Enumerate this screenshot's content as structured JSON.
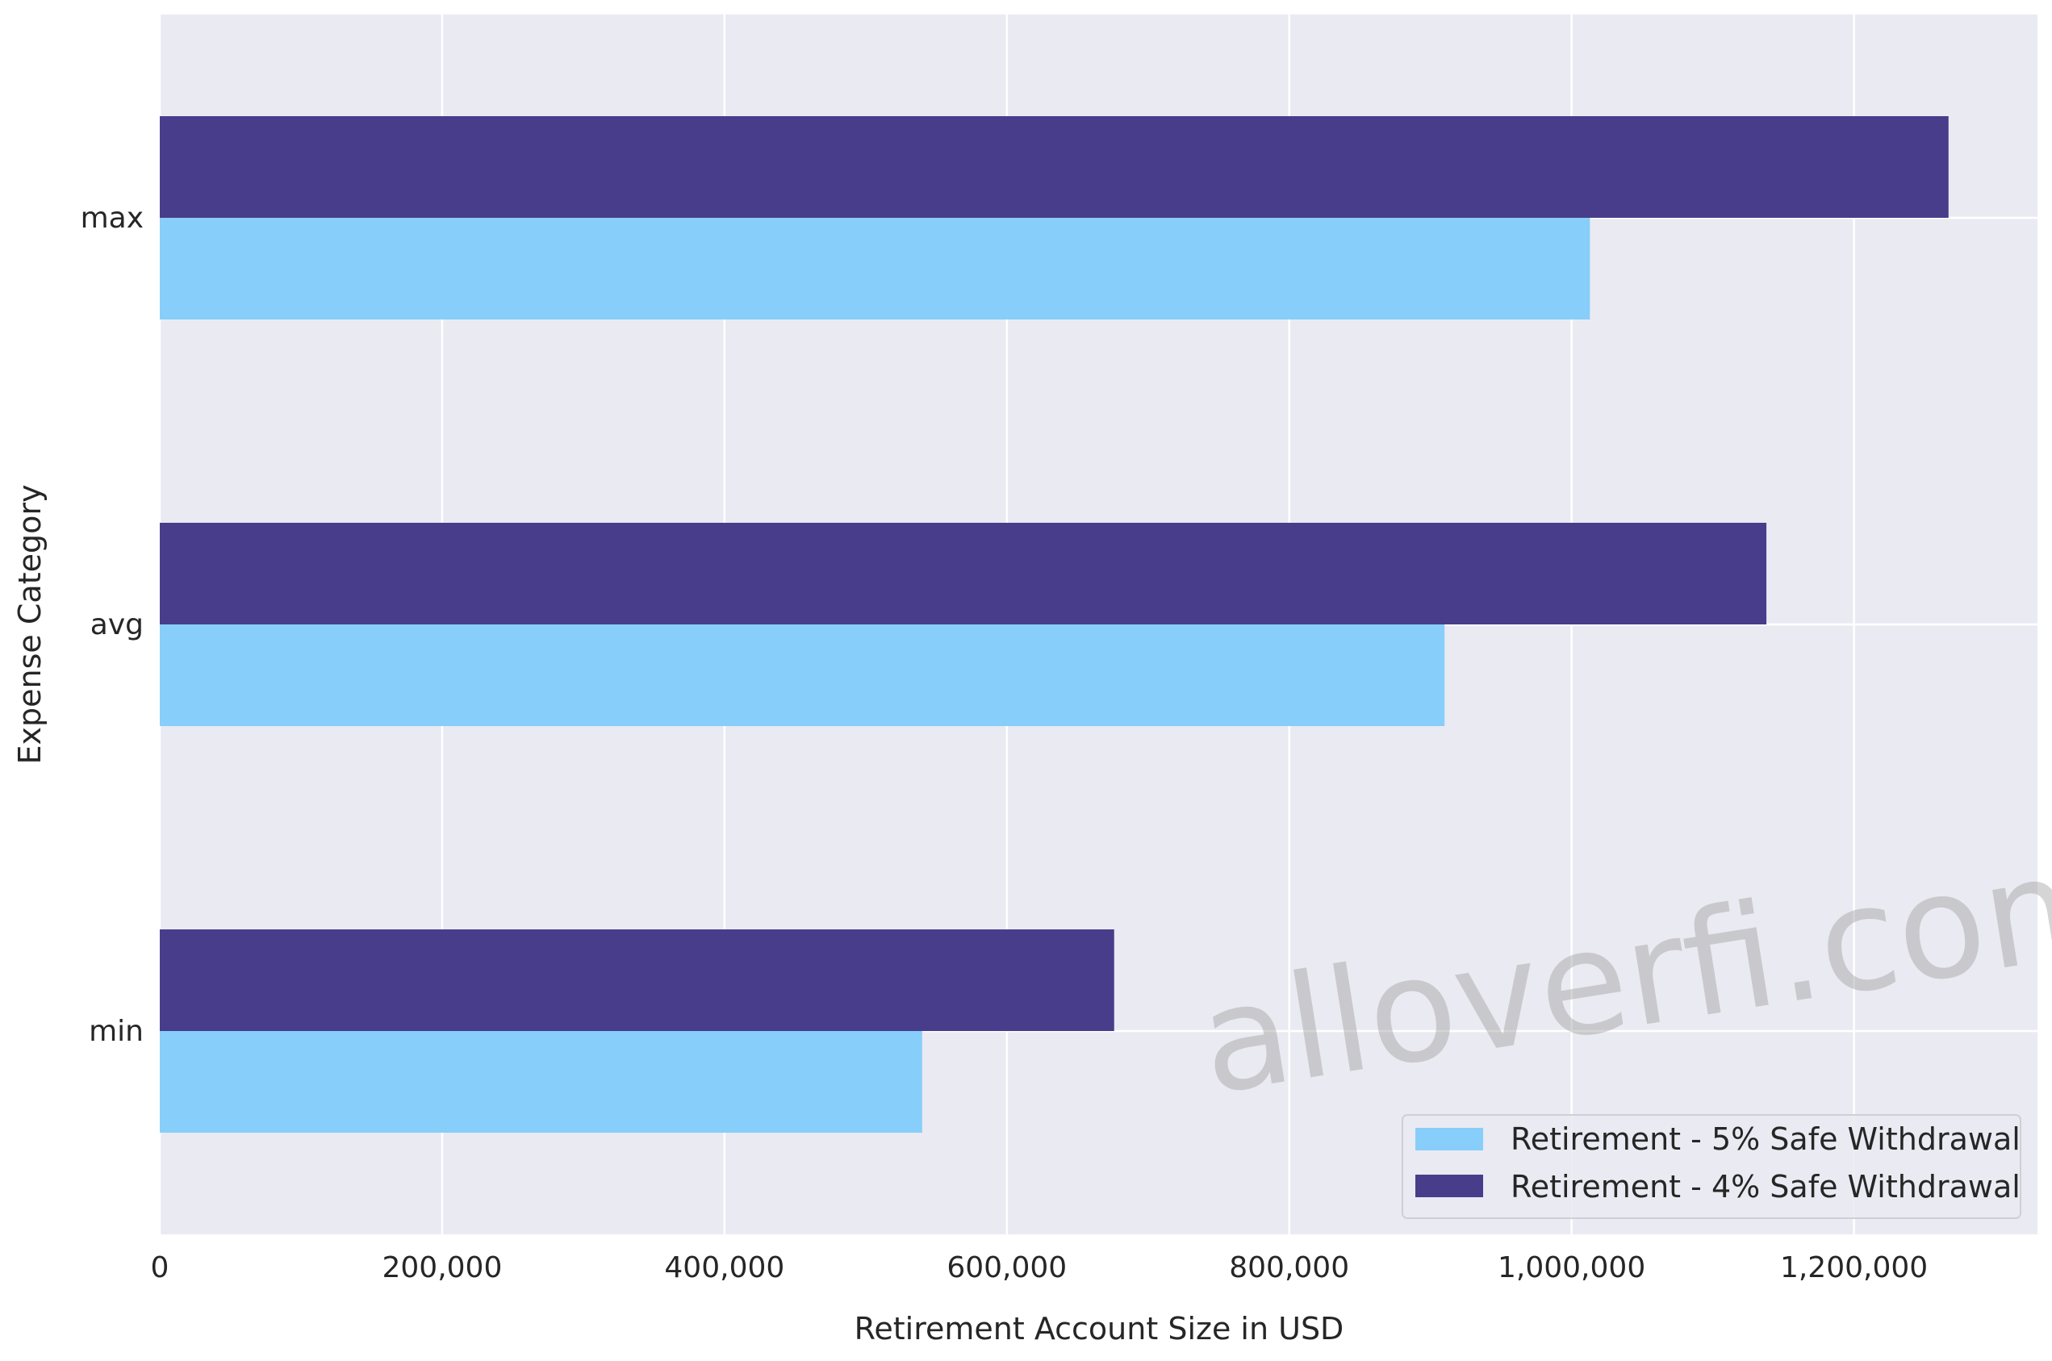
{
  "chart_data": {
    "type": "bar",
    "orientation": "horizontal",
    "categories": [
      "max",
      "avg",
      "min"
    ],
    "series": [
      {
        "name": "Retirement - 5% Safe Withdrawal",
        "color": "#87CEFA",
        "values": [
          1013000,
          910000,
          540000
        ]
      },
      {
        "name": "Retirement - 4% Safe Withdrawal",
        "color": "#483D8B",
        "values": [
          1267000,
          1138000,
          676000
        ]
      }
    ],
    "xlabel": "Retirement Account Size in USD",
    "ylabel": "Expense Category",
    "xlim": [
      0,
      1330000
    ],
    "xticks": [
      0,
      200000,
      400000,
      600000,
      800000,
      1000000,
      1200000
    ],
    "xtick_labels": [
      "0",
      "200,000",
      "400,000",
      "600,000",
      "800,000",
      "1,000,000",
      "1,200,000"
    ],
    "grid": true,
    "legend": {
      "position": "bottom-right",
      "entries": [
        "Retirement - 5% Safe Withdrawal",
        "Retirement - 4% Safe Withdrawal"
      ]
    },
    "background_color": "#EAEAF2",
    "watermark": "alloverfi.com"
  }
}
